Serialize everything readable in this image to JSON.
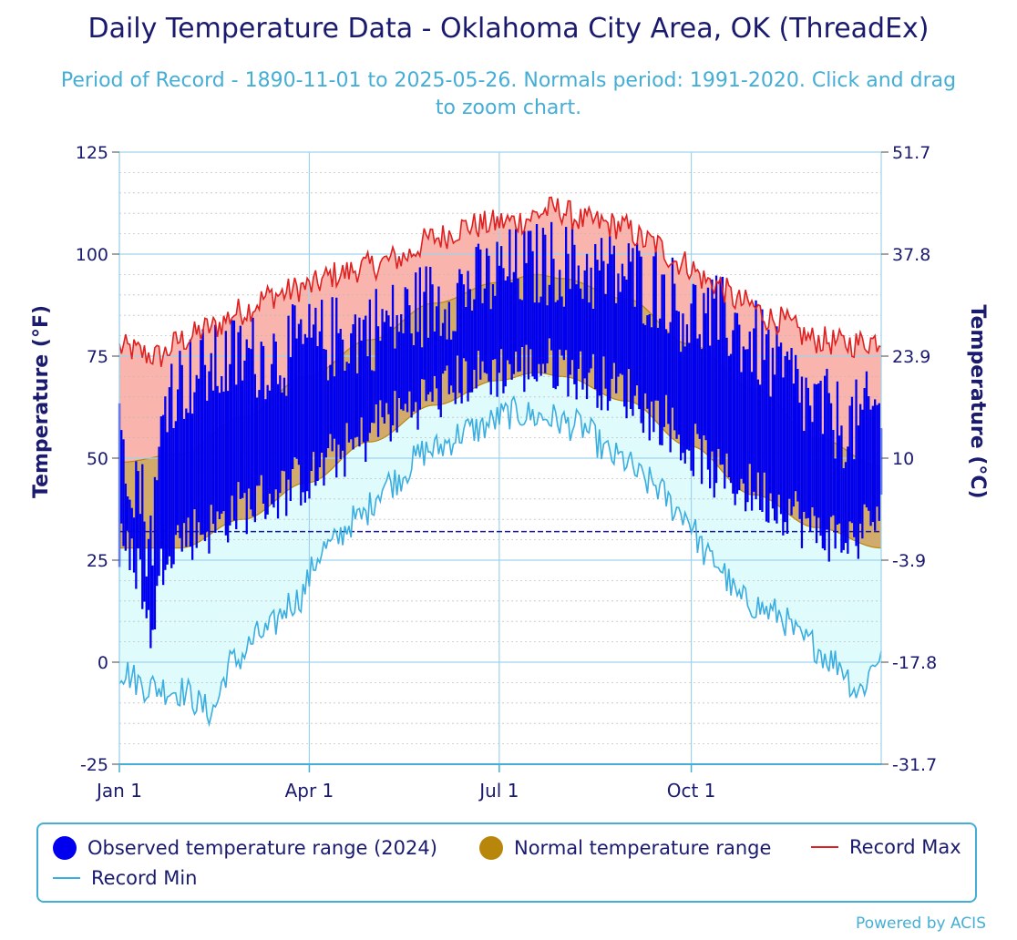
{
  "title": "Daily Temperature Data - Oklahoma City Area, OK (ThreadEx)",
  "subtitle": "Period of Record - 1890-11-01 to 2025-05-26. Normals period: 1991-2020. Click and drag to zoom chart.",
  "credit": "Powered by ACIS",
  "colors": {
    "observed": "#0000ee",
    "normal_fill": "#d2aa6a",
    "normal_edge": "#b8860b",
    "record_max": "#e02020",
    "record_max_fill": "#f9b5ad",
    "record_min": "#3aaee0",
    "record_min_fill": "#e0fbfb",
    "freeze_line": "#1a1a9e"
  },
  "legend": {
    "observed": "Observed temperature range (2024)",
    "normal": "Normal temperature range",
    "record_max": "Record Max",
    "record_min": "Record Min"
  },
  "chart_data": {
    "type": "area",
    "title": "Daily Temperature Data - Oklahoma City Area, OK (ThreadEx)",
    "ylabel": "Temperature (°F)",
    "ylabel_right": "Temperature (°C)",
    "ylim": [
      -25,
      125
    ],
    "yticks": [
      -25,
      0,
      25,
      50,
      75,
      100,
      125
    ],
    "yticks_right": [
      "-31.7",
      "-17.8",
      "-3.9",
      "10",
      "23.9",
      "37.8",
      "51.7"
    ],
    "x_domain_days": [
      1,
      366
    ],
    "xticks": [
      {
        "day": 1,
        "label": "Jan 1"
      },
      {
        "day": 92,
        "label": "Apr 1"
      },
      {
        "day": 183,
        "label": "Jul 1"
      },
      {
        "day": 275,
        "label": "Oct 1"
      }
    ],
    "freeze_line_f": 32,
    "legend_position": "bottom",
    "series": [
      {
        "name": "Record Max",
        "kind": "line",
        "anchors": [
          [
            1,
            77
          ],
          [
            20,
            75
          ],
          [
            31,
            79
          ],
          [
            45,
            82
          ],
          [
            59,
            86
          ],
          [
            75,
            90
          ],
          [
            91,
            92
          ],
          [
            105,
            95
          ],
          [
            120,
            97
          ],
          [
            135,
            99
          ],
          [
            152,
            104
          ],
          [
            170,
            107
          ],
          [
            190,
            108
          ],
          [
            210,
            111
          ],
          [
            225,
            108
          ],
          [
            240,
            107
          ],
          [
            255,
            103
          ],
          [
            270,
            98
          ],
          [
            285,
            93
          ],
          [
            300,
            88
          ],
          [
            315,
            84
          ],
          [
            335,
            79
          ],
          [
            350,
            78
          ],
          [
            366,
            79
          ]
        ]
      },
      {
        "name": "Record Min",
        "kind": "line",
        "anchors": [
          [
            1,
            -2
          ],
          [
            15,
            -6
          ],
          [
            30,
            -7
          ],
          [
            45,
            -12
          ],
          [
            55,
            0
          ],
          [
            70,
            7
          ],
          [
            85,
            15
          ],
          [
            100,
            28
          ],
          [
            115,
            35
          ],
          [
            130,
            44
          ],
          [
            150,
            52
          ],
          [
            170,
            57
          ],
          [
            190,
            61
          ],
          [
            205,
            60
          ],
          [
            220,
            58
          ],
          [
            240,
            50
          ],
          [
            255,
            44
          ],
          [
            270,
            37
          ],
          [
            285,
            25
          ],
          [
            300,
            15
          ],
          [
            315,
            12
          ],
          [
            330,
            5
          ],
          [
            345,
            0
          ],
          [
            355,
            -7
          ],
          [
            366,
            2
          ]
        ]
      },
      {
        "name": "Normal High",
        "anchors": [
          [
            1,
            49
          ],
          [
            30,
            51
          ],
          [
            60,
            60
          ],
          [
            91,
            70
          ],
          [
            121,
            79
          ],
          [
            152,
            88
          ],
          [
            182,
            93
          ],
          [
            201,
            95
          ],
          [
            213,
            94
          ],
          [
            244,
            89
          ],
          [
            274,
            78
          ],
          [
            305,
            67
          ],
          [
            335,
            55
          ],
          [
            366,
            48
          ]
        ]
      },
      {
        "name": "Normal Low",
        "anchors": [
          [
            1,
            28
          ],
          [
            30,
            28
          ],
          [
            60,
            35
          ],
          [
            91,
            44
          ],
          [
            121,
            54
          ],
          [
            152,
            63
          ],
          [
            182,
            69
          ],
          [
            201,
            71
          ],
          [
            213,
            70
          ],
          [
            244,
            64
          ],
          [
            274,
            53
          ],
          [
            305,
            41
          ],
          [
            335,
            33
          ],
          [
            366,
            28
          ]
        ]
      },
      {
        "name": "Observed temperature range (2024)",
        "kind": "range_bars",
        "high_anchors": [
          [
            1,
            55
          ],
          [
            10,
            45
          ],
          [
            15,
            30
          ],
          [
            25,
            68
          ],
          [
            45,
            72
          ],
          [
            60,
            75
          ],
          [
            75,
            75
          ],
          [
            91,
            78
          ],
          [
            110,
            80
          ],
          [
            130,
            83
          ],
          [
            150,
            88
          ],
          [
            170,
            92
          ],
          [
            190,
            96
          ],
          [
            210,
            98
          ],
          [
            225,
            96
          ],
          [
            240,
            95
          ],
          [
            260,
            92
          ],
          [
            275,
            85
          ],
          [
            290,
            84
          ],
          [
            305,
            78
          ],
          [
            320,
            70
          ],
          [
            335,
            62
          ],
          [
            350,
            58
          ],
          [
            366,
            62
          ]
        ],
        "low_anchors": [
          [
            1,
            28
          ],
          [
            10,
            24
          ],
          [
            15,
            8
          ],
          [
            25,
            30
          ],
          [
            45,
            33
          ],
          [
            60,
            38
          ],
          [
            75,
            41
          ],
          [
            91,
            45
          ],
          [
            110,
            52
          ],
          [
            130,
            60
          ],
          [
            150,
            65
          ],
          [
            170,
            70
          ],
          [
            190,
            72
          ],
          [
            210,
            73
          ],
          [
            225,
            70
          ],
          [
            240,
            67
          ],
          [
            260,
            60
          ],
          [
            275,
            52
          ],
          [
            290,
            45
          ],
          [
            305,
            42
          ],
          [
            320,
            38
          ],
          [
            335,
            32
          ],
          [
            350,
            30
          ],
          [
            366,
            36
          ]
        ]
      }
    ]
  }
}
